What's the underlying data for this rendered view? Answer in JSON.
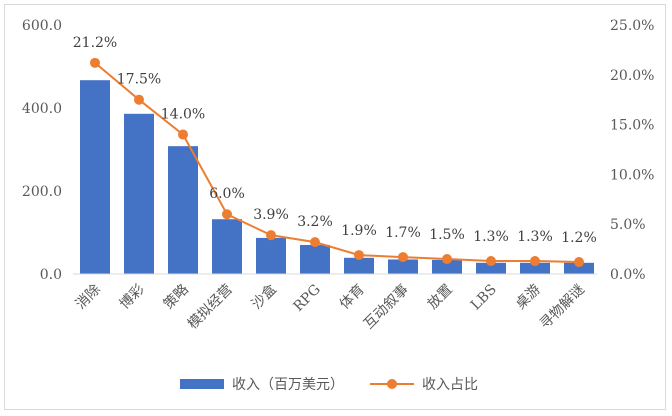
{
  "chart_data": {
    "type": "bar+line",
    "categories": [
      "消除",
      "博彩",
      "策略",
      "模拟经营",
      "沙盒",
      "RPG",
      "体育",
      "互动叙事",
      "放置",
      "LBS",
      "桌游",
      "寻物解谜"
    ],
    "series": [
      {
        "name": "收入（百万美元）",
        "type": "bar",
        "axis": "left",
        "color": "#4472c4",
        "values": [
          467,
          386,
          308,
          132,
          87,
          70,
          39,
          35,
          34,
          27,
          27,
          27
        ]
      },
      {
        "name": "收入占比",
        "type": "line",
        "axis": "right",
        "color": "#ed7d31",
        "values": [
          21.2,
          17.5,
          14.0,
          6.0,
          3.9,
          3.2,
          1.9,
          1.7,
          1.5,
          1.3,
          1.3,
          1.2
        ],
        "labels": [
          "21.2%",
          "17.5%",
          "14.0%",
          "6.0%",
          "3.9%",
          "3.2%",
          "1.9%",
          "1.7%",
          "1.5%",
          "1.3%",
          "1.3%",
          "1.2%"
        ]
      }
    ],
    "y_left": {
      "lim": [
        0,
        600
      ],
      "ticks": [
        0,
        200,
        400,
        600
      ],
      "tick_labels": [
        "0.0",
        "200.0",
        "400.0",
        "600.0"
      ]
    },
    "y_right": {
      "lim": [
        0,
        25
      ],
      "ticks": [
        0,
        5,
        10,
        15,
        20,
        25
      ],
      "tick_labels": [
        "0.0%",
        "5.0%",
        "10.0%",
        "15.0%",
        "20.0%",
        "25.0%"
      ]
    },
    "grid": false,
    "legend": "bottom"
  }
}
